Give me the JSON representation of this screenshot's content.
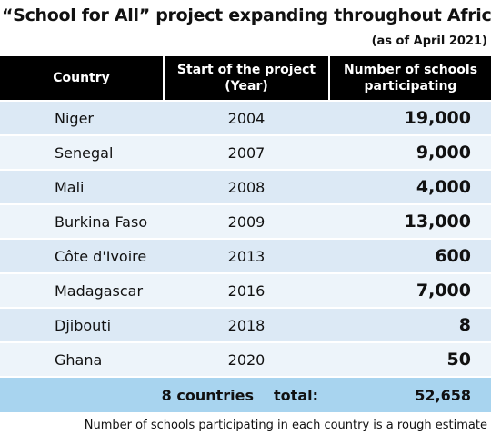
{
  "header": {
    "title": "“School for All” project expanding throughout Africa",
    "subtitle": "(as of April 2021)"
  },
  "table": {
    "columns": [
      "Country",
      "Start of the project (Year)",
      "Number of schools participating"
    ],
    "rows": [
      [
        "Niger",
        "2004",
        "19,000"
      ],
      [
        "Senegal",
        "2007",
        "9,000"
      ],
      [
        "Mali",
        "2008",
        "4,000"
      ],
      [
        "Burkina Faso",
        "2009",
        "13,000"
      ],
      [
        "Côte d'Ivoire",
        "2013",
        "600"
      ],
      [
        "Madagascar",
        "2016",
        "7,000"
      ],
      [
        "Djibouti",
        "2018",
        "8"
      ],
      [
        "Ghana",
        "2020",
        "50"
      ]
    ],
    "total": {
      "count": "8 countries",
      "label": "total:",
      "value": "52,658"
    }
  },
  "footnote": "Number of schools participating in each country is a rough estimate"
}
